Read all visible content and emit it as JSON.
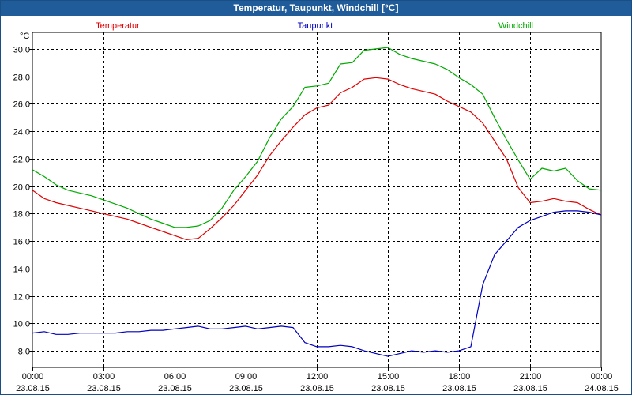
{
  "window": {
    "title": "Temperatur, Taupunkt, Windchill [°C]"
  },
  "chart_data": {
    "type": "line",
    "title": "Temperatur, Taupunkt, Windchill [°C]",
    "ylabel": "°C",
    "ylim": [
      6.8,
      31.2
    ],
    "yticks": [
      8,
      10,
      12,
      14,
      16,
      18,
      20,
      22,
      24,
      26,
      28,
      30
    ],
    "ytick_labels": [
      "8,0",
      "10,0",
      "12,0",
      "14,0",
      "16,0",
      "18,0",
      "20,0",
      "22,0",
      "24,0",
      "26,0",
      "28,0",
      "30,0"
    ],
    "xlim": [
      0,
      24
    ],
    "xticks": [
      0,
      3,
      6,
      9,
      12,
      15,
      18,
      21,
      24
    ],
    "xtick_times": [
      "00:00",
      "03:00",
      "06:00",
      "09:00",
      "12:00",
      "15:00",
      "18:00",
      "21:00",
      "00:00"
    ],
    "xtick_dates": [
      "23.08.15",
      "23.08.15",
      "23.08.15",
      "23.08.15",
      "23.08.15",
      "23.08.15",
      "23.08.15",
      "23.08.15",
      "24.08.15"
    ],
    "grid": true,
    "legend_placement": "top",
    "series": [
      {
        "name": "Temperatur",
        "color": "#e00000",
        "x": [
          0,
          0.5,
          1,
          1.5,
          2,
          2.5,
          3,
          3.5,
          4,
          4.5,
          5,
          5.5,
          6,
          6.5,
          7,
          7.5,
          8,
          8.5,
          9,
          9.5,
          10,
          10.5,
          11,
          11.5,
          12,
          12.5,
          13,
          13.5,
          14,
          14.5,
          15,
          15.5,
          16,
          16.5,
          17,
          17.5,
          18,
          18.5,
          19,
          19.5,
          20,
          20.5,
          21,
          21.5,
          22,
          22.5,
          23,
          23.5,
          24
        ],
        "y": [
          19.7,
          19.1,
          18.8,
          18.6,
          18.4,
          18.2,
          18.0,
          17.8,
          17.6,
          17.3,
          17.0,
          16.7,
          16.4,
          16.1,
          16.2,
          16.9,
          17.7,
          18.6,
          19.7,
          20.8,
          22.2,
          23.3,
          24.3,
          25.2,
          25.7,
          25.9,
          26.8,
          27.2,
          27.8,
          27.9,
          27.8,
          27.4,
          27.1,
          26.9,
          26.7,
          26.2,
          25.8,
          25.4,
          24.6,
          23.3,
          22.0,
          19.9,
          18.8,
          18.9,
          19.1,
          18.9,
          18.8,
          18.3,
          17.9
        ]
      },
      {
        "name": "Taupunkt",
        "color": "#0000c0",
        "x": [
          0,
          0.5,
          1,
          1.5,
          2,
          2.5,
          3,
          3.5,
          4,
          4.5,
          5,
          5.5,
          6,
          6.5,
          7,
          7.5,
          8,
          8.5,
          9,
          9.5,
          10,
          10.5,
          11,
          11.5,
          12,
          12.5,
          13,
          13.5,
          14,
          14.5,
          15,
          15.5,
          16,
          16.5,
          17,
          17.5,
          18,
          18.5,
          19,
          19.5,
          20,
          20.5,
          21,
          21.5,
          22,
          22.5,
          23,
          23.5,
          24
        ],
        "y": [
          9.3,
          9.4,
          9.2,
          9.2,
          9.3,
          9.3,
          9.3,
          9.3,
          9.4,
          9.4,
          9.5,
          9.5,
          9.6,
          9.7,
          9.8,
          9.6,
          9.6,
          9.7,
          9.8,
          9.6,
          9.7,
          9.8,
          9.7,
          8.6,
          8.3,
          8.3,
          8.4,
          8.3,
          8.0,
          7.8,
          7.6,
          7.8,
          8.0,
          7.9,
          8.0,
          7.9,
          8.0,
          8.3,
          12.8,
          15.0,
          16.0,
          17.0,
          17.5,
          17.8,
          18.1,
          18.2,
          18.2,
          18.1,
          17.9
        ]
      },
      {
        "name": "Windchill",
        "color": "#00aa00",
        "x": [
          0,
          0.5,
          1,
          1.5,
          2,
          2.5,
          3,
          3.5,
          4,
          4.5,
          5,
          5.5,
          6,
          6.5,
          7,
          7.5,
          8,
          8.5,
          9,
          9.5,
          10,
          10.5,
          11,
          11.5,
          12,
          12.5,
          13,
          13.5,
          14,
          14.5,
          15,
          15.5,
          16,
          16.5,
          17,
          17.5,
          18,
          18.5,
          19,
          19.5,
          20,
          20.5,
          21,
          21.5,
          22,
          22.5,
          23,
          23.5,
          24
        ],
        "y": [
          21.2,
          20.7,
          20.1,
          19.7,
          19.5,
          19.3,
          19.0,
          18.7,
          18.4,
          18.0,
          17.6,
          17.3,
          17.0,
          17.0,
          17.1,
          17.5,
          18.4,
          19.7,
          20.7,
          21.8,
          23.5,
          24.9,
          25.8,
          27.2,
          27.3,
          27.5,
          28.9,
          29.0,
          29.9,
          30.0,
          30.1,
          29.6,
          29.3,
          29.1,
          28.9,
          28.5,
          27.9,
          27.4,
          26.7,
          25.0,
          23.4,
          21.9,
          20.5,
          21.3,
          21.1,
          21.3,
          20.4,
          19.8,
          19.7
        ]
      }
    ]
  }
}
